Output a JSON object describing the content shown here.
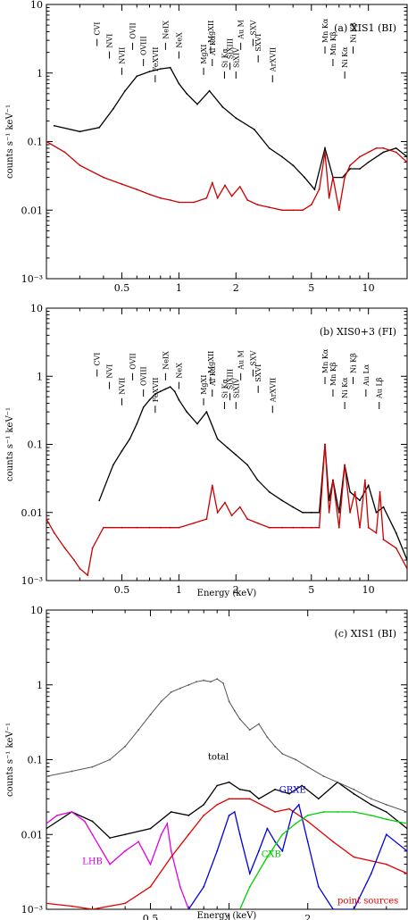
{
  "chart_data": [
    {
      "type": "line",
      "title": "(a) XIS1 (BI)",
      "xlabel": "",
      "ylabel": "counts s⁻¹ keV⁻¹",
      "xscale": "log",
      "yscale": "log",
      "xlim": [
        0.2,
        16
      ],
      "ylim": [
        0.001,
        10
      ],
      "x_ticks": [
        "0.5",
        "1",
        "2",
        "5",
        "10"
      ],
      "y_ticks": [
        "10",
        "1",
        "0.1",
        "0.01",
        "10⁻³"
      ],
      "series": [
        {
          "color": "#000000",
          "x": [
            0.22,
            0.3,
            0.38,
            0.45,
            0.52,
            0.6,
            0.7,
            0.8,
            0.9,
            1.0,
            1.1,
            1.25,
            1.45,
            1.7,
            2.0,
            2.5,
            3.0,
            3.5,
            4.0,
            4.6,
            5.2,
            5.9,
            6.5,
            7.3,
            8.0,
            9.0,
            10.0,
            12.0,
            14.0,
            16.0
          ],
          "y": [
            0.17,
            0.14,
            0.16,
            0.3,
            0.55,
            0.9,
            1.05,
            1.15,
            1.2,
            0.7,
            0.5,
            0.35,
            0.55,
            0.32,
            0.22,
            0.15,
            0.08,
            0.06,
            0.045,
            0.03,
            0.02,
            0.08,
            0.03,
            0.03,
            0.04,
            0.04,
            0.05,
            0.07,
            0.08,
            0.06
          ]
        },
        {
          "color": "#cc0000",
          "x": [
            0.2,
            0.25,
            0.3,
            0.4,
            0.5,
            0.6,
            0.7,
            0.8,
            0.9,
            1.0,
            1.2,
            1.4,
            1.5,
            1.6,
            1.75,
            1.9,
            2.1,
            2.3,
            2.6,
            3.0,
            3.5,
            4.0,
            4.5,
            5.0,
            5.5,
            5.9,
            6.2,
            6.5,
            7.0,
            7.5,
            8.0,
            9.0,
            10.0,
            11.0,
            12.0,
            14.0,
            16.0
          ],
          "y": [
            0.1,
            0.07,
            0.045,
            0.03,
            0.024,
            0.02,
            0.017,
            0.015,
            0.014,
            0.013,
            0.013,
            0.015,
            0.025,
            0.015,
            0.023,
            0.016,
            0.022,
            0.014,
            0.012,
            0.011,
            0.01,
            0.01,
            0.01,
            0.012,
            0.02,
            0.07,
            0.015,
            0.03,
            0.01,
            0.03,
            0.045,
            0.06,
            0.07,
            0.08,
            0.08,
            0.07,
            0.05
          ]
        }
      ],
      "line_labels": [
        {
          "text": "CVI",
          "x": 0.37
        },
        {
          "text": "NVI",
          "x": 0.43
        },
        {
          "text": "NVII",
          "x": 0.5
        },
        {
          "text": "OVII",
          "x": 0.57
        },
        {
          "text": "OVIII",
          "x": 0.65
        },
        {
          "text": "FeXVII",
          "x": 0.75
        },
        {
          "text": "NeIX",
          "x": 0.85
        },
        {
          "text": "NeX",
          "x": 1.0
        },
        {
          "text": "MgXI",
          "x": 1.35
        },
        {
          "text": "MgXII",
          "x": 1.47
        },
        {
          "text": "Al Kα",
          "x": 1.5
        },
        {
          "text": "Si Kα",
          "x": 1.74
        },
        {
          "text": "Au M",
          "x": 2.12
        },
        {
          "text": "SiXIII",
          "x": 1.86
        },
        {
          "text": "SiXIV",
          "x": 2.0
        },
        {
          "text": "SXV",
          "x": 2.46
        },
        {
          "text": "SXVI",
          "x": 2.62
        },
        {
          "text": "ArXVII",
          "x": 3.12
        },
        {
          "text": "Mn Kα",
          "x": 5.9
        },
        {
          "text": "Mn Kβ",
          "x": 6.5
        },
        {
          "text": "Ni Kα",
          "x": 7.5
        },
        {
          "text": "Ni Kβ",
          "x": 8.3
        }
      ]
    },
    {
      "type": "line",
      "title": "(b) XIS0+3 (FI)",
      "xlabel": "Energy (keV)",
      "ylabel": "counts s⁻¹ keV⁻¹",
      "xscale": "log",
      "yscale": "log",
      "xlim": [
        0.2,
        16
      ],
      "ylim": [
        0.001,
        10
      ],
      "x_ticks": [
        "0.5",
        "1",
        "2",
        "5",
        "10"
      ],
      "y_ticks": [
        "10",
        "1",
        "0.1",
        "0.01",
        "10⁻³"
      ],
      "series": [
        {
          "color": "#000000",
          "x": [
            0.38,
            0.45,
            0.5,
            0.55,
            0.6,
            0.65,
            0.7,
            0.75,
            0.8,
            0.85,
            0.9,
            0.95,
            1.0,
            1.1,
            1.25,
            1.4,
            1.6,
            1.8,
            2.0,
            2.3,
            2.6,
            3.0,
            3.5,
            4.0,
            4.5,
            5.0,
            5.5,
            5.9,
            6.2,
            6.5,
            7.0,
            7.5,
            8.0,
            9.0,
            10.0,
            11.0,
            12.0,
            14.0,
            16.0
          ],
          "y": [
            0.015,
            0.05,
            0.08,
            0.12,
            0.2,
            0.35,
            0.45,
            0.55,
            0.6,
            0.65,
            0.7,
            0.6,
            0.45,
            0.3,
            0.2,
            0.3,
            0.12,
            0.09,
            0.07,
            0.05,
            0.03,
            0.02,
            0.015,
            0.012,
            0.01,
            0.01,
            0.01,
            0.1,
            0.015,
            0.03,
            0.01,
            0.05,
            0.02,
            0.015,
            0.025,
            0.01,
            0.012,
            0.005,
            0.002
          ]
        },
        {
          "color": "#cc0000",
          "x": [
            0.2,
            0.22,
            0.25,
            0.28,
            0.3,
            0.33,
            0.35,
            0.4,
            0.5,
            0.6,
            0.7,
            0.8,
            0.9,
            1.0,
            1.2,
            1.4,
            1.5,
            1.6,
            1.75,
            1.9,
            2.1,
            2.3,
            2.6,
            3.0,
            3.5,
            4.0,
            4.5,
            5.0,
            5.5,
            5.9,
            6.2,
            6.5,
            7.0,
            7.5,
            8.0,
            8.5,
            9.0,
            9.6,
            10.0,
            11.0,
            11.5,
            12.0,
            14.0,
            16.0
          ],
          "y": [
            0.008,
            0.005,
            0.003,
            0.002,
            0.0015,
            0.0012,
            0.003,
            0.006,
            0.006,
            0.006,
            0.006,
            0.006,
            0.006,
            0.006,
            0.007,
            0.008,
            0.025,
            0.01,
            0.014,
            0.009,
            0.012,
            0.008,
            0.007,
            0.006,
            0.006,
            0.006,
            0.006,
            0.006,
            0.006,
            0.1,
            0.01,
            0.03,
            0.006,
            0.05,
            0.01,
            0.02,
            0.006,
            0.03,
            0.006,
            0.005,
            0.02,
            0.004,
            0.003,
            0.0015
          ]
        }
      ],
      "line_labels": [
        {
          "text": "CVI",
          "x": 0.37
        },
        {
          "text": "NVI",
          "x": 0.43
        },
        {
          "text": "NVII",
          "x": 0.5
        },
        {
          "text": "OVII",
          "x": 0.57
        },
        {
          "text": "OVIII",
          "x": 0.65
        },
        {
          "text": "FeXVII",
          "x": 0.75
        },
        {
          "text": "NeIX",
          "x": 0.85
        },
        {
          "text": "NeX",
          "x": 1.0
        },
        {
          "text": "MgXI",
          "x": 1.35
        },
        {
          "text": "MgXII",
          "x": 1.47
        },
        {
          "text": "Al Kα",
          "x": 1.5
        },
        {
          "text": "Si Kα",
          "x": 1.74
        },
        {
          "text": "Au M",
          "x": 2.12
        },
        {
          "text": "SiXIII",
          "x": 1.86
        },
        {
          "text": "SiXIV",
          "x": 2.0
        },
        {
          "text": "SXV",
          "x": 2.46
        },
        {
          "text": "SXVI",
          "x": 2.62
        },
        {
          "text": "ArXVII",
          "x": 3.12
        },
        {
          "text": "Mn Kα",
          "x": 5.9
        },
        {
          "text": "Mn Kβ",
          "x": 6.5
        },
        {
          "text": "Ni Kα",
          "x": 7.5
        },
        {
          "text": "Ni Kβ",
          "x": 8.3
        },
        {
          "text": "Au Lα",
          "x": 9.7
        },
        {
          "text": "Au Lβ",
          "x": 11.4
        }
      ]
    },
    {
      "type": "line",
      "title": "(c) XIS1 (BI)",
      "xlabel": "Energy (keV)",
      "ylabel": "counts s⁻¹ keV⁻¹",
      "xscale": "log",
      "yscale": "log",
      "xlim": [
        0.2,
        4.8
      ],
      "ylim": [
        0.001,
        10
      ],
      "x_ticks": [
        "0.5",
        "1",
        "2"
      ],
      "y_ticks": [
        "10",
        "1",
        "0.1",
        "0.01",
        "10⁻³"
      ],
      "series": [
        {
          "name": "total",
          "color": "#000000",
          "x": [
            0.2,
            0.25,
            0.3,
            0.35,
            0.4,
            0.5,
            0.6,
            0.7,
            0.8,
            0.9,
            1.0,
            1.1,
            1.2,
            1.3,
            1.5,
            1.7,
            1.9,
            2.2,
            2.6,
            3.0,
            3.5,
            4.0,
            4.8
          ],
          "y": [
            0.012,
            0.02,
            0.015,
            0.009,
            0.01,
            0.012,
            0.02,
            0.018,
            0.025,
            0.045,
            0.05,
            0.04,
            0.038,
            0.03,
            0.04,
            0.035,
            0.045,
            0.03,
            0.05,
            0.035,
            0.025,
            0.02,
            0.012
          ]
        },
        {
          "name": "LHB",
          "color": "#e000e0",
          "x": [
            0.2,
            0.22,
            0.25,
            0.28,
            0.3,
            0.35,
            0.4,
            0.45,
            0.5,
            0.55,
            0.58,
            0.6,
            0.65,
            0.7
          ],
          "y": [
            0.014,
            0.018,
            0.02,
            0.015,
            0.01,
            0.004,
            0.006,
            0.008,
            0.004,
            0.01,
            0.014,
            0.006,
            0.002,
            0.001
          ]
        },
        {
          "name": "point sources",
          "color": "#e00000",
          "x": [
            0.2,
            0.25,
            0.3,
            0.4,
            0.5,
            0.6,
            0.7,
            0.8,
            0.9,
            1.0,
            1.2,
            1.5,
            1.7,
            2.0,
            2.5,
            3.0,
            4.0,
            4.8
          ],
          "y": [
            0.0012,
            0.0011,
            0.001,
            0.0012,
            0.002,
            0.005,
            0.01,
            0.018,
            0.025,
            0.03,
            0.03,
            0.02,
            0.022,
            0.015,
            0.008,
            0.005,
            0.004,
            0.003
          ]
        },
        {
          "name": "GRXE",
          "color": "#0000e0",
          "x": [
            0.7,
            0.8,
            0.9,
            1.0,
            1.05,
            1.1,
            1.2,
            1.3,
            1.4,
            1.5,
            1.6,
            1.75,
            1.85,
            2.0,
            2.2,
            2.5,
            3.0,
            3.5,
            4.0,
            4.8
          ],
          "y": [
            0.001,
            0.002,
            0.006,
            0.018,
            0.02,
            0.01,
            0.003,
            0.006,
            0.012,
            0.008,
            0.006,
            0.02,
            0.025,
            0.008,
            0.002,
            0.001,
            0.001,
            0.003,
            0.01,
            0.006
          ]
        },
        {
          "name": "CXB",
          "color": "#00d000",
          "x": [
            1.1,
            1.2,
            1.4,
            1.6,
            1.8,
            2.0,
            2.3,
            2.6,
            3.0,
            3.5,
            4.0,
            4.8
          ],
          "y": [
            0.001,
            0.002,
            0.005,
            0.01,
            0.014,
            0.018,
            0.02,
            0.02,
            0.02,
            0.018,
            0.016,
            0.014
          ]
        },
        {
          "color": "#555555",
          "x": [
            0.2,
            0.25,
            0.3,
            0.35,
            0.4,
            0.45,
            0.5,
            0.55,
            0.6,
            0.65,
            0.7,
            0.75,
            0.8,
            0.85,
            0.9,
            0.95,
            1.0,
            1.05,
            1.1,
            1.2,
            1.3,
            1.4,
            1.5,
            1.6,
            1.8,
            2.0,
            2.3,
            2.6,
            3.0,
            3.5,
            4.0,
            4.8
          ],
          "y": [
            0.06,
            0.07,
            0.08,
            0.1,
            0.15,
            0.25,
            0.4,
            0.6,
            0.8,
            0.9,
            1.0,
            1.1,
            1.15,
            1.1,
            1.2,
            1.05,
            0.6,
            0.45,
            0.35,
            0.25,
            0.3,
            0.2,
            0.15,
            0.12,
            0.1,
            0.08,
            0.06,
            0.05,
            0.04,
            0.03,
            0.025,
            0.02
          ]
        }
      ],
      "annotations": [
        {
          "text": "total",
          "color": "#000000",
          "x": 0.91,
          "y": 0.1
        },
        {
          "text": "LHB",
          "color": "#e000e0",
          "x": 0.3,
          "y": 0.004
        },
        {
          "text": "GRXE",
          "color": "#0000e0",
          "x": 1.75,
          "y": 0.036
        },
        {
          "text": "CXB",
          "color": "#00d000",
          "x": 1.45,
          "y": 0.005
        },
        {
          "text": "point sources",
          "color": "#e00000",
          "x": 3.4,
          "y": 0.0012
        }
      ]
    }
  ]
}
